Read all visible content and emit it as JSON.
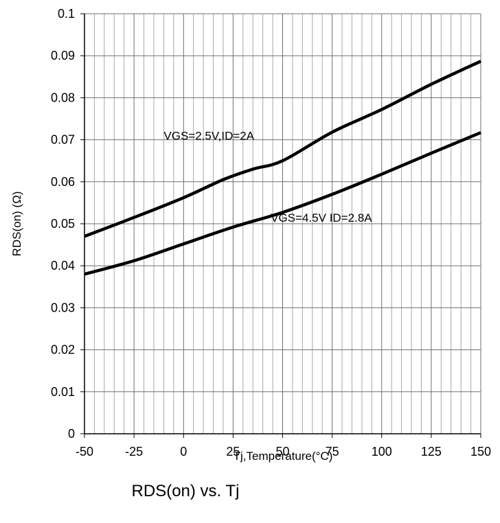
{
  "chart_data": {
    "type": "line",
    "caption": "RDS(on) vs. Tj",
    "xlabel": "Tj,Temperature(°C)",
    "ylabel": "RDS(on) (Ω)",
    "xlim": [
      -50,
      150
    ],
    "ylim": [
      0,
      0.1
    ],
    "x_major_ticks": [
      -50,
      -25,
      0,
      25,
      50,
      75,
      100,
      125,
      150
    ],
    "x_tick_labels": [
      "-50",
      "-25",
      "0",
      "25",
      "50",
      "75",
      "100",
      "125",
      "150"
    ],
    "x_minor_step": 5,
    "y_ticks": [
      0,
      0.01,
      0.02,
      0.03,
      0.04,
      0.05,
      0.06,
      0.07,
      0.08,
      0.09,
      0.1
    ],
    "y_tick_labels": [
      "0",
      "0.01",
      "0.02",
      "0.03",
      "0.04",
      "0.05",
      "0.06",
      "0.07",
      "0.08",
      "0.09",
      "0.1"
    ],
    "grid": true,
    "series": [
      {
        "name": "VGS=2.5V,ID=2A",
        "label_at": [
          -10,
          0.07
        ],
        "x": [
          -50,
          -25,
          0,
          20,
          35,
          50,
          75,
          100,
          125,
          150
        ],
        "y": [
          0.047,
          0.0515,
          0.0562,
          0.0605,
          0.063,
          0.065,
          0.0718,
          0.0772,
          0.0832,
          0.0887
        ]
      },
      {
        "name": "VGS=4.5V ID=2.8A",
        "label_at": [
          44,
          0.0505
        ],
        "x": [
          -50,
          -25,
          0,
          25,
          50,
          75,
          100,
          125,
          150
        ],
        "y": [
          0.038,
          0.0412,
          0.0452,
          0.0492,
          0.0527,
          0.057,
          0.0618,
          0.0668,
          0.0717
        ]
      }
    ],
    "line_color": "#000000"
  }
}
